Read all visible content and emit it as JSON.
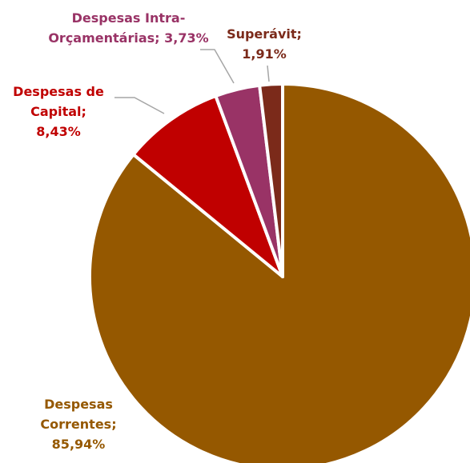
{
  "chart_data": {
    "type": "pie",
    "categories": [
      "Despesas Correntes;",
      "Despesas de Capital;",
      "Despesas Intra-Orçamentárias;",
      "Superávit;"
    ],
    "values": [
      85.94,
      8.43,
      3.73,
      1.91
    ],
    "value_labels": [
      "85,94%",
      "8,43%",
      "3,73%",
      "1,91%"
    ],
    "colors": [
      "#955800",
      "#c00000",
      "#993366",
      "#7b2a1a"
    ]
  }
}
